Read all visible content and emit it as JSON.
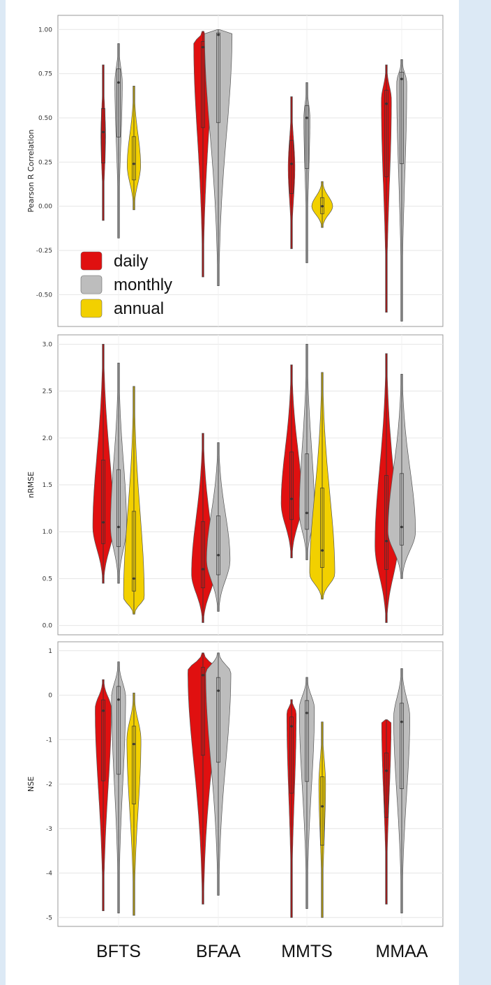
{
  "colors": {
    "daily": "#e01010",
    "monthly": "#bdbdbd",
    "annual": "#f2d000",
    "page_bg": "#dce9f5",
    "grid": "#e6e6e6"
  },
  "chart_data": [
    {
      "type": "violin",
      "ylabel": "Pearson R Correlation",
      "ylim": [
        -0.68,
        1.08
      ],
      "yticks": [
        -0.5,
        -0.25,
        0.0,
        0.25,
        0.5,
        0.75,
        1.0
      ],
      "ytick_labels": [
        "-0.50",
        "-0.25",
        "0.00",
        "0.25",
        "0.50",
        "0.75",
        "1.00"
      ],
      "categories": [
        "BFTS",
        "BFAA",
        "MMTS",
        "MMAA"
      ],
      "legend": {
        "position": "bottom-left",
        "labels": [
          "daily",
          "monthly",
          "annual"
        ]
      },
      "series": [
        {
          "name": "daily",
          "color_key": "daily",
          "values": [
            {
              "category": "BFTS",
              "min": -0.08,
              "max": 0.8,
              "median": 0.42,
              "mode": 0.4,
              "max_halfwidth": 0.14
            },
            {
              "category": "BFAA",
              "min": -0.4,
              "max": 0.99,
              "median": 0.9,
              "mode": 0.92,
              "max_halfwidth": 0.55
            },
            {
              "category": "MMTS",
              "min": -0.24,
              "max": 0.62,
              "median": 0.24,
              "mode": 0.22,
              "max_halfwidth": 0.2
            },
            {
              "category": "MMAA",
              "min": -0.6,
              "max": 0.8,
              "median": 0.58,
              "mode": 0.6,
              "max_halfwidth": 0.3
            }
          ]
        },
        {
          "name": "monthly",
          "color_key": "monthly",
          "values": [
            {
              "category": "BFTS",
              "min": -0.18,
              "max": 0.92,
              "median": 0.7,
              "mode": 0.7,
              "max_halfwidth": 0.22
            },
            {
              "category": "BFAA",
              "min": -0.45,
              "max": 1.0,
              "median": 0.97,
              "mode": 0.98,
              "max_halfwidth": 0.82
            },
            {
              "category": "MMTS",
              "min": -0.32,
              "max": 0.7,
              "median": 0.5,
              "mode": 0.5,
              "max_halfwidth": 0.18
            },
            {
              "category": "MMAA",
              "min": -0.65,
              "max": 0.83,
              "median": 0.72,
              "mode": 0.7,
              "max_halfwidth": 0.3
            }
          ]
        },
        {
          "name": "annual",
          "color_key": "annual",
          "values": [
            {
              "category": "BFTS",
              "min": -0.02,
              "max": 0.68,
              "median": 0.24,
              "mode": 0.23,
              "max_halfwidth": 0.4
            },
            {
              "category": "MMTS",
              "min": -0.12,
              "max": 0.14,
              "median": 0.0,
              "mode": 0.0,
              "max_halfwidth": 0.62
            }
          ]
        }
      ]
    },
    {
      "type": "violin",
      "ylabel": "nRMSE",
      "ylim": [
        -0.1,
        3.1
      ],
      "yticks": [
        0.0,
        0.5,
        1.0,
        1.5,
        2.0,
        2.5,
        3.0
      ],
      "ytick_labels": [
        "0.0",
        "0.5",
        "1.0",
        "1.5",
        "2.0",
        "2.5",
        "3.0"
      ],
      "categories": [
        "BFTS",
        "BFAA",
        "MMTS",
        "MMAA"
      ],
      "series": [
        {
          "name": "daily",
          "color_key": "daily",
          "values": [
            {
              "category": "BFTS",
              "min": 0.45,
              "max": 3.0,
              "median": 1.1,
              "mode": 1.05,
              "max_halfwidth": 0.62
            },
            {
              "category": "BFAA",
              "min": 0.03,
              "max": 2.05,
              "median": 0.6,
              "mode": 0.55,
              "max_halfwidth": 0.68
            },
            {
              "category": "MMTS",
              "min": 0.72,
              "max": 2.78,
              "median": 1.35,
              "mode": 1.3,
              "max_halfwidth": 0.62
            },
            {
              "category": "MMAA",
              "min": 0.03,
              "max": 2.9,
              "median": 0.9,
              "mode": 0.85,
              "max_halfwidth": 0.68
            }
          ]
        },
        {
          "name": "monthly",
          "color_key": "monthly",
          "values": [
            {
              "category": "BFTS",
              "min": 0.45,
              "max": 2.8,
              "median": 1.05,
              "mode": 1.05,
              "max_halfwidth": 0.48
            },
            {
              "category": "BFAA",
              "min": 0.15,
              "max": 1.95,
              "median": 0.75,
              "mode": 0.7,
              "max_halfwidth": 0.7
            },
            {
              "category": "MMTS",
              "min": 0.7,
              "max": 3.0,
              "median": 1.2,
              "mode": 1.2,
              "max_halfwidth": 0.45
            },
            {
              "category": "MMAA",
              "min": 0.5,
              "max": 2.68,
              "median": 1.05,
              "mode": 1.0,
              "max_halfwidth": 0.82
            }
          ]
        },
        {
          "name": "annual",
          "color_key": "annual",
          "values": [
            {
              "category": "BFTS",
              "min": 0.12,
              "max": 2.55,
              "median": 0.5,
              "mode": 0.3,
              "max_halfwidth": 0.62
            },
            {
              "category": "MMTS",
              "min": 0.28,
              "max": 2.7,
              "median": 0.8,
              "mode": 0.55,
              "max_halfwidth": 0.75
            }
          ]
        }
      ]
    },
    {
      "type": "violin",
      "ylabel": "NSE",
      "ylim": [
        -5.2,
        1.2
      ],
      "yticks": [
        -5,
        -4,
        -3,
        -2,
        -1,
        0,
        1
      ],
      "ytick_labels": [
        "-5",
        "-4",
        "-3",
        "-2",
        "-1",
        "0",
        "1"
      ],
      "categories": [
        "BFTS",
        "BFAA",
        "MMTS",
        "MMAA"
      ],
      "series": [
        {
          "name": "daily",
          "color_key": "daily",
          "values": [
            {
              "category": "BFTS",
              "min": -4.85,
              "max": 0.35,
              "median": -0.35,
              "mode": -0.3,
              "max_halfwidth": 0.48
            },
            {
              "category": "BFAA",
              "min": -4.7,
              "max": 0.95,
              "median": 0.45,
              "mode": 0.55,
              "max_halfwidth": 0.9
            },
            {
              "category": "MMTS",
              "min": -5.0,
              "max": -0.1,
              "median": -0.7,
              "mode": -0.4,
              "max_halfwidth": 0.28
            },
            {
              "category": "MMAA",
              "min": -4.7,
              "max": -0.55,
              "median": -1.7,
              "mode": -0.6,
              "max_halfwidth": 0.28
            }
          ]
        },
        {
          "name": "monthly",
          "color_key": "monthly",
          "values": [
            {
              "category": "BFTS",
              "min": -4.9,
              "max": 0.75,
              "median": -0.1,
              "mode": -0.05,
              "max_halfwidth": 0.42
            },
            {
              "category": "BFAA",
              "min": -4.5,
              "max": 0.95,
              "median": 0.1,
              "mode": 0.5,
              "max_halfwidth": 0.75
            },
            {
              "category": "MMTS",
              "min": -4.8,
              "max": 0.4,
              "median": -0.4,
              "mode": -0.3,
              "max_halfwidth": 0.45
            },
            {
              "category": "MMAA",
              "min": -4.9,
              "max": 0.6,
              "median": -0.6,
              "mode": -0.5,
              "max_halfwidth": 0.48
            }
          ]
        },
        {
          "name": "annual",
          "color_key": "annual",
          "values": [
            {
              "category": "BFTS",
              "min": -4.95,
              "max": 0.05,
              "median": -1.1,
              "mode": -1.0,
              "max_halfwidth": 0.42
            },
            {
              "category": "MMTS",
              "min": -5.0,
              "max": -0.6,
              "median": -2.5,
              "mode": -2.0,
              "max_halfwidth": 0.2
            }
          ]
        }
      ]
    }
  ]
}
